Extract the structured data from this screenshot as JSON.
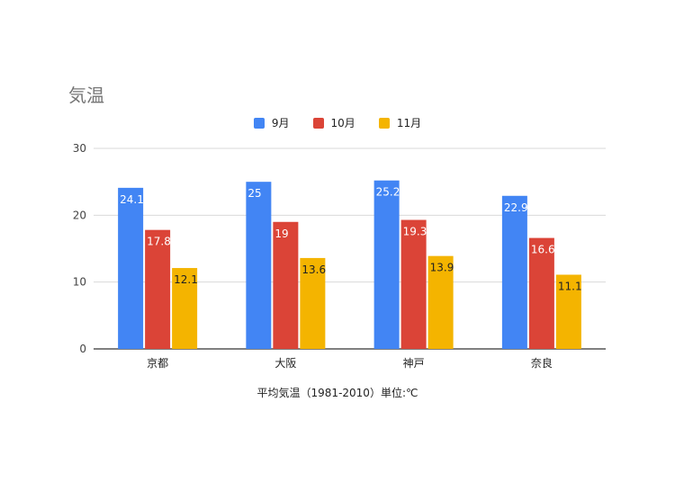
{
  "chart_data": {
    "type": "bar",
    "title": "気温",
    "xlabel": "平均気温（1981-2010）単位:℃",
    "ylabel": "",
    "categories": [
      "京都",
      "大阪",
      "神戸",
      "奈良"
    ],
    "series": [
      {
        "name": "9月",
        "color": "#4285f4",
        "label_color": "#ffffff",
        "values": [
          24.1,
          25,
          25.2,
          22.9
        ]
      },
      {
        "name": "10月",
        "color": "#db4437",
        "label_color": "#ffffff",
        "values": [
          17.8,
          19,
          19.3,
          16.6
        ]
      },
      {
        "name": "11月",
        "color": "#f4b400",
        "label_color": "#222222",
        "values": [
          12.1,
          13.6,
          13.9,
          11.1
        ]
      }
    ],
    "ylim": [
      0,
      30
    ],
    "yticks": [
      0,
      10,
      20,
      30
    ],
    "grid": true,
    "legend_position": "top-center",
    "data_labels": true
  }
}
